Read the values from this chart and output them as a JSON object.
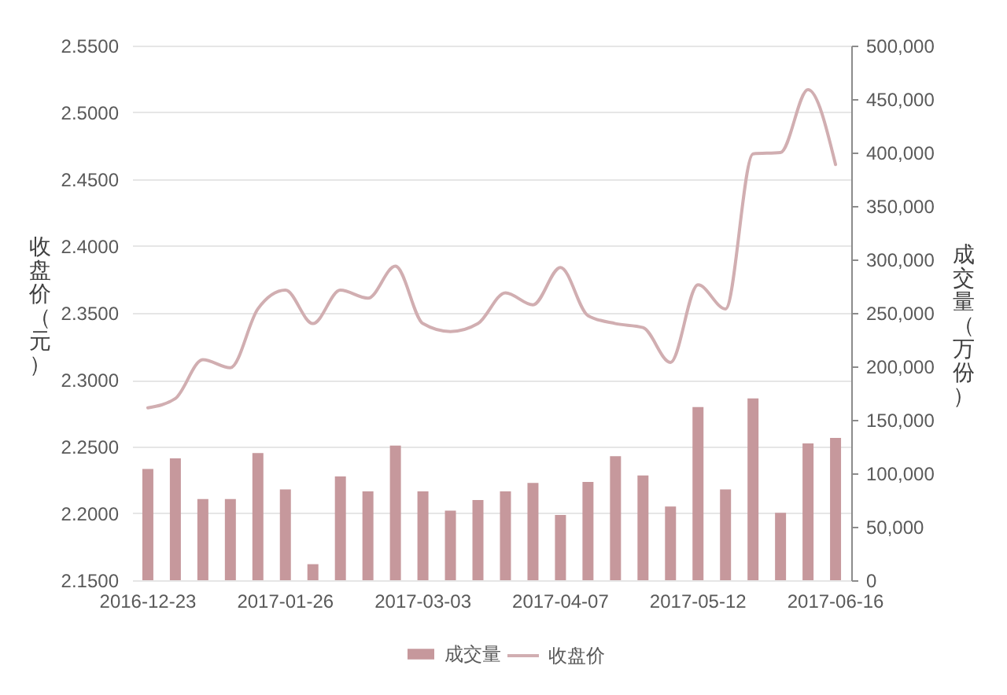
{
  "chart_data": {
    "type": "bar",
    "categories": [
      "2016-12-23",
      null,
      null,
      null,
      null,
      "2017-01-26",
      null,
      null,
      null,
      null,
      "2017-03-03",
      null,
      null,
      null,
      null,
      "2017-04-07",
      null,
      null,
      null,
      null,
      "2017-05-12",
      null,
      null,
      null,
      null,
      "2017-06-16"
    ],
    "ylabel": "收盘价（元）",
    "y2label": "成交量（万份）",
    "series": [
      {
        "name": "成交量",
        "axis": "y2",
        "color": "#c6989c",
        "values": [
          104000,
          114000,
          76000,
          76000,
          119000,
          85000,
          15000,
          97000,
          83000,
          126000,
          83000,
          65000,
          75000,
          83000,
          91000,
          61000,
          92000,
          116000,
          98000,
          69000,
          162000,
          85000,
          170000,
          63000,
          128000,
          133000
        ]
      },
      {
        "name": "收盘价",
        "type": "line",
        "color": "#d1aeb1",
        "values": [
          2.279,
          2.286,
          2.315,
          2.309,
          2.353,
          2.367,
          2.342,
          2.367,
          2.361,
          2.385,
          2.342,
          2.336,
          2.342,
          2.365,
          2.356,
          2.384,
          2.348,
          2.342,
          2.339,
          2.313,
          2.371,
          2.353,
          2.469,
          2.47,
          2.517,
          2.461
        ]
      }
    ],
    "ylim": [
      2.15,
      2.55
    ],
    "yticks": [
      {
        "value": 2.15,
        "label": "2.1500"
      },
      {
        "value": 2.2,
        "label": "2.2000"
      },
      {
        "value": 2.25,
        "label": "2.2500"
      },
      {
        "value": 2.3,
        "label": "2.3000"
      },
      {
        "value": 2.35,
        "label": "2.3500"
      },
      {
        "value": 2.4,
        "label": "2.4000"
      },
      {
        "value": 2.45,
        "label": "2.4500"
      },
      {
        "value": 2.5,
        "label": "2.5000"
      },
      {
        "value": 2.55,
        "label": "2.5500"
      }
    ],
    "y2lim": [
      0,
      500000
    ],
    "y2ticks": [
      0,
      {
        "value": 50000,
        "label": "50,000"
      },
      {
        "value": 100000,
        "label": "100,000"
      },
      {
        "value": 150000,
        "label": "150,000"
      },
      {
        "value": 200000,
        "label": "200,000"
      },
      {
        "value": 250000,
        "label": "250,000"
      },
      {
        "value": 300000,
        "label": "300,000"
      },
      {
        "value": 350000,
        "label": "350,000"
      },
      {
        "value": 400000,
        "label": "400,000"
      },
      {
        "value": 450000,
        "label": "450,000"
      },
      {
        "value": 500000,
        "label": "500,000"
      }
    ],
    "grid": "y",
    "legend": "bottom"
  }
}
